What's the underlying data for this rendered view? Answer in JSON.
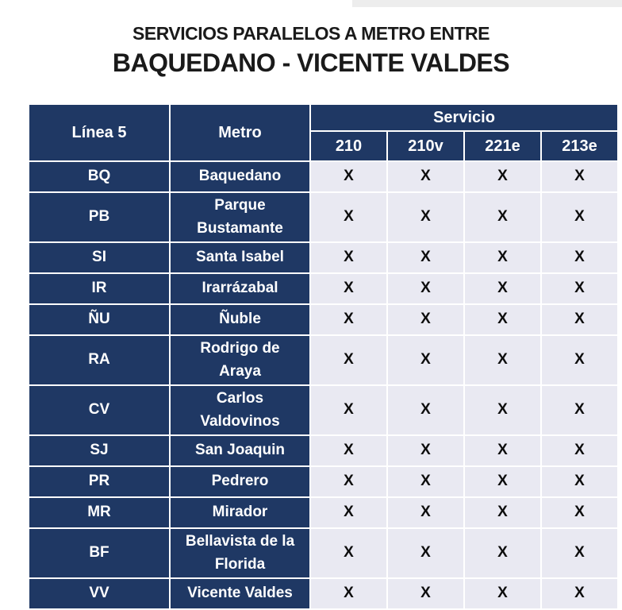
{
  "title": {
    "line1": "SERVICIOS PARALELOS A METRO ENTRE",
    "line2": "BAQUEDANO - VICENTE VALDES"
  },
  "table": {
    "headers": {
      "linea": "Línea 5",
      "metro": "Metro",
      "servicio": "Servicio",
      "services": [
        "210",
        "210v",
        "221e",
        "213e"
      ]
    },
    "rows": [
      {
        "code": "BQ",
        "name": "Baquedano",
        "services": [
          "X",
          "X",
          "X",
          "X"
        ]
      },
      {
        "code": "PB",
        "name": "Parque Bustamante",
        "services": [
          "X",
          "X",
          "X",
          "X"
        ]
      },
      {
        "code": "SI",
        "name": "Santa Isabel",
        "services": [
          "X",
          "X",
          "X",
          "X"
        ]
      },
      {
        "code": "IR",
        "name": "Irarrázabal",
        "services": [
          "X",
          "X",
          "X",
          "X"
        ]
      },
      {
        "code": "ÑU",
        "name": "Ñuble",
        "services": [
          "X",
          "X",
          "X",
          "X"
        ]
      },
      {
        "code": "RA",
        "name": "Rodrigo de Araya",
        "services": [
          "X",
          "X",
          "X",
          "X"
        ]
      },
      {
        "code": "CV",
        "name": "Carlos Valdovinos",
        "services": [
          "X",
          "X",
          "X",
          "X"
        ]
      },
      {
        "code": "SJ",
        "name": "San Joaquin",
        "services": [
          "X",
          "X",
          "X",
          "X"
        ]
      },
      {
        "code": "PR",
        "name": "Pedrero",
        "services": [
          "X",
          "X",
          "X",
          "X"
        ]
      },
      {
        "code": "MR",
        "name": "Mirador",
        "services": [
          "X",
          "X",
          "X",
          "X"
        ]
      },
      {
        "code": "BF",
        "name": "Bellavista de la Florida",
        "services": [
          "X",
          "X",
          "X",
          "X"
        ]
      },
      {
        "code": "VV",
        "name": "Vicente Valdes",
        "services": [
          "X",
          "X",
          "X",
          "X"
        ]
      }
    ],
    "colors": {
      "header_bg": "#1F3864",
      "mark_cell_bg": "#E9E9F2",
      "grid": "#FFFFFF",
      "header_text": "#FFFFFF",
      "mark_text": "#0D0D0D"
    }
  }
}
